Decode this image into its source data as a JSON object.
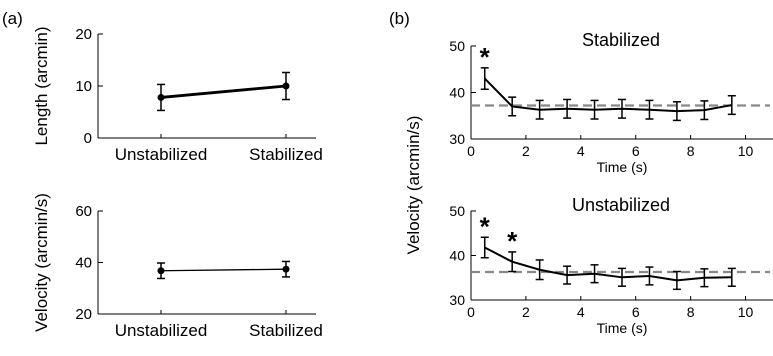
{
  "panel_labels": {
    "a": "(a)",
    "b": "(b)"
  },
  "chart_data": [
    {
      "id": "a-top",
      "type": "line",
      "categories": [
        "Unstabilized",
        "Stabilized"
      ],
      "ylabel": "Length (arcmin)",
      "ylim": [
        0,
        20
      ],
      "yticks": [
        0,
        10,
        20
      ],
      "series": [
        {
          "values": [
            7.8,
            10.0
          ],
          "errors": [
            2.5,
            2.6
          ]
        }
      ]
    },
    {
      "id": "a-bottom",
      "type": "line",
      "categories": [
        "Unstabilized",
        "Stabilized"
      ],
      "ylabel": "Velocity (arcmin/s)",
      "ylim": [
        20,
        60
      ],
      "yticks": [
        20,
        40,
        60
      ],
      "series": [
        {
          "values": [
            36.8,
            37.4
          ],
          "errors": [
            3.0,
            3.0
          ]
        }
      ]
    },
    {
      "id": "b-top",
      "type": "line",
      "title": "Stabilized",
      "xlabel": "Time (s)",
      "xlim": [
        0,
        11
      ],
      "xticks": [
        0,
        2,
        4,
        6,
        8,
        10
      ],
      "ylim": [
        30,
        50
      ],
      "yticks": [
        30,
        40,
        50
      ],
      "x": [
        0.5,
        1.5,
        2.5,
        3.5,
        4.5,
        5.5,
        6.5,
        7.5,
        8.5,
        9.5
      ],
      "series": [
        {
          "values": [
            43.0,
            37.0,
            36.3,
            36.5,
            36.3,
            36.5,
            36.3,
            36.0,
            36.2,
            37.3
          ],
          "errors": [
            2.3,
            2.0,
            2.0,
            2.0,
            2.0,
            2.0,
            2.0,
            2.0,
            2.0,
            2.0
          ]
        }
      ],
      "reference_line": 37.2,
      "significance_marks": [
        {
          "x": 0.5,
          "label": "*"
        }
      ]
    },
    {
      "id": "b-bottom",
      "type": "line",
      "title": "Unstabilized",
      "xlabel": "Time (s)",
      "xlim": [
        0,
        11
      ],
      "xticks": [
        0,
        2,
        4,
        6,
        8,
        10
      ],
      "ylim": [
        30,
        50
      ],
      "yticks": [
        30,
        40,
        50
      ],
      "x": [
        0.5,
        1.5,
        2.5,
        3.5,
        4.5,
        5.5,
        6.5,
        7.5,
        8.5,
        9.5
      ],
      "series": [
        {
          "values": [
            41.8,
            38.6,
            36.8,
            35.6,
            35.9,
            35.1,
            35.4,
            34.4,
            35.0,
            35.1
          ],
          "errors": [
            2.3,
            2.2,
            2.2,
            2.0,
            2.0,
            2.0,
            2.0,
            2.0,
            2.0,
            2.0
          ]
        }
      ],
      "reference_line": 36.3,
      "significance_marks": [
        {
          "x": 0.5,
          "label": "*"
        },
        {
          "x": 1.5,
          "label": "*"
        }
      ]
    }
  ],
  "shared_ylabel_b": "Velocity (arcmin/s)",
  "colors": {
    "line": "#000000",
    "reference": "#888888",
    "axis": "#000000"
  }
}
